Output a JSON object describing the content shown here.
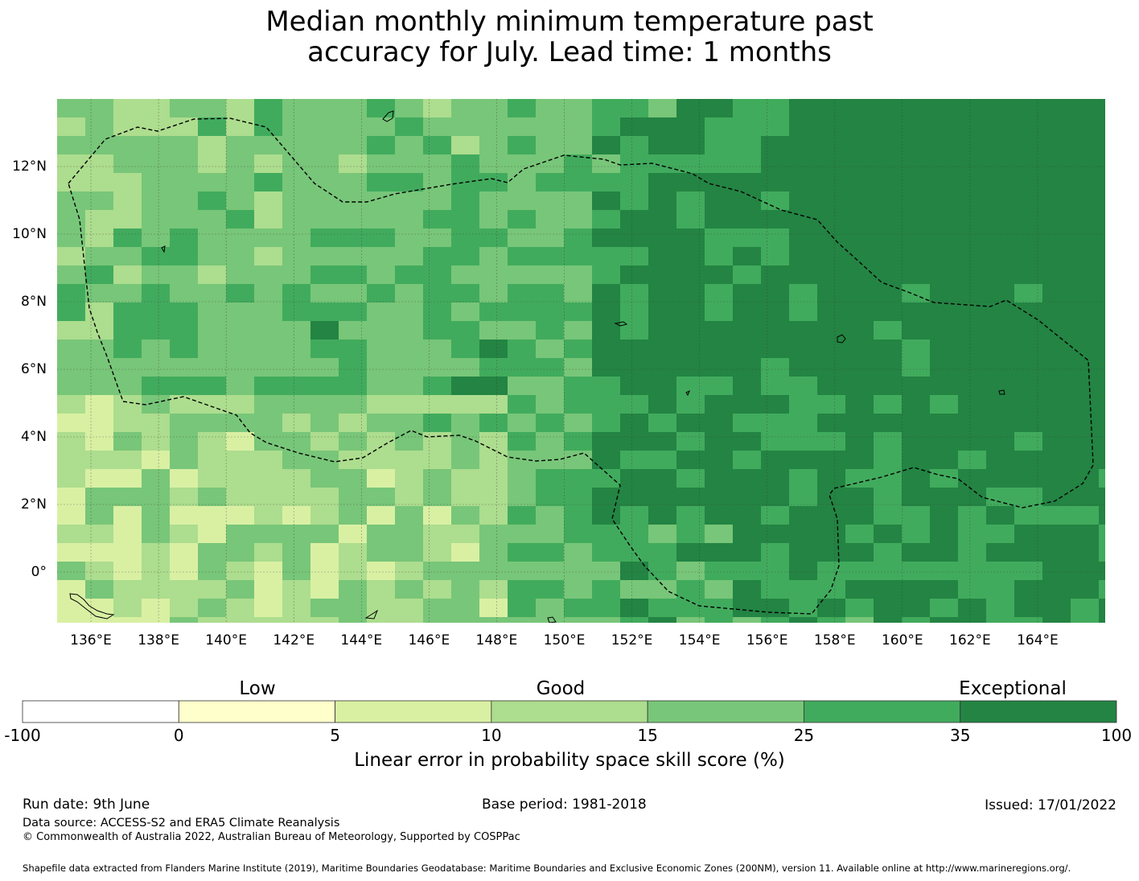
{
  "title": {
    "line1": "Median monthly minimum temperature past",
    "line2": "accuracy for July. Lead time: 1 months"
  },
  "map": {
    "x_ticks": [
      "136°E",
      "138°E",
      "140°E",
      "142°E",
      "144°E",
      "146°E",
      "148°E",
      "150°E",
      "152°E",
      "154°E",
      "156°E",
      "158°E",
      "160°E",
      "162°E",
      "164°E"
    ],
    "y_ticks": [
      "12°N",
      "10°N",
      "8°N",
      "6°N",
      "4°N",
      "2°N",
      "0°"
    ],
    "lon_range": [
      135.0,
      166.0
    ],
    "lat_range": [
      -1.5,
      14.0
    ],
    "grid": true
  },
  "colorbar": {
    "categories": [
      "Low",
      "Good",
      "Exceptional"
    ],
    "ticks": [
      "-100",
      "0",
      "5",
      "10",
      "15",
      "25",
      "35",
      "100"
    ],
    "colors": [
      "#ffffff",
      "#ffffcc",
      "#d9f0a3",
      "#addd8e",
      "#78c679",
      "#41ab5d",
      "#238443"
    ],
    "label": "Linear error in probability space skill score (%)"
  },
  "footer": {
    "run_date": "Run date: 9th June",
    "base_period": "Base period: 1981-2018",
    "issued": "Issued: 17/01/2022",
    "data_source": "Data source: ACCESS-S2 and ERA5 Climate Reanalysis",
    "copyright": "© Commonwealth of Australia 2022, Australian Bureau of Meteorology, Supported by COSPPac",
    "shapefile": "Shapefile data extracted from Flanders Marine Institute (2019), Maritime Boundaries Geodatabase: Maritime Boundaries and Exclusive Economic Zones (200NM), version 11. Available online at http://www.marineregions.org/."
  }
}
